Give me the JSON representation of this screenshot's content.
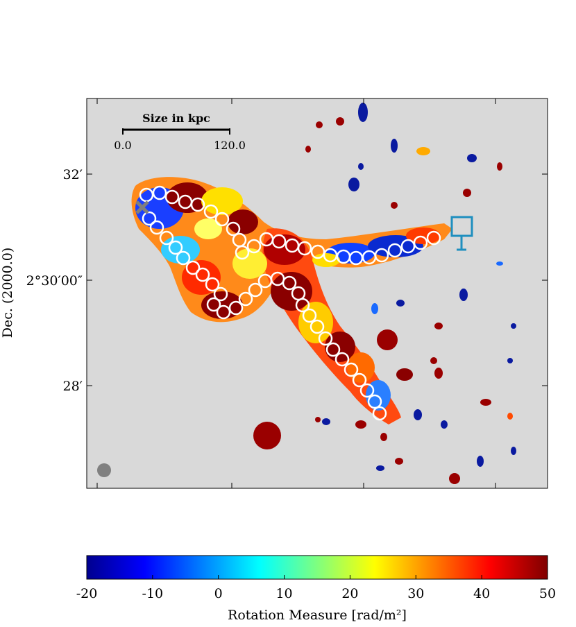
{
  "chart_data": {
    "type": "heatmap",
    "axes": {
      "ylabel": "Dec. (2000.0)",
      "yticks": [
        "32′",
        "2°30′00″",
        "28′"
      ]
    },
    "scale_bar": {
      "title": "Size in kpc",
      "start_label": "0.0",
      "end_label": "120.0"
    },
    "colorbar": {
      "label": "Rotation Measure [rad/m²]",
      "min": -20,
      "max": 50,
      "ticks": [
        "-20",
        "-10",
        "0",
        "10",
        "20",
        "30",
        "40",
        "50"
      ],
      "colormap": "jet"
    },
    "colors": {
      "background": "#d9d9d9",
      "beam": "#808080",
      "marker_x": "#7f7f7f",
      "marker_square": "#1f8fbf",
      "circle_stroke": "#ffffff"
    },
    "markers": {
      "x": "gray-x-marker",
      "square": "blue-square-marker",
      "beam": "gray-beam-circle"
    }
  }
}
